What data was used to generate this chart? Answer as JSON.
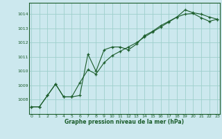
{
  "xlabel": "Graphe pression niveau de la mer (hPa)",
  "background_color": "#cce8ee",
  "grid_color": "#9ecfcc",
  "line_color": "#1a5c2a",
  "text_color": "#1a5c2a",
  "series1_x": [
    0,
    1,
    2,
    3,
    4,
    5,
    6,
    7,
    8,
    9,
    10,
    11,
    12,
    13,
    14,
    15,
    16,
    17,
    18,
    19,
    20,
    21,
    22,
    23
  ],
  "series1_y": [
    1007.5,
    1007.5,
    1008.3,
    1009.1,
    1008.2,
    1008.2,
    1008.3,
    1011.2,
    1010.0,
    1011.5,
    1011.7,
    1011.7,
    1011.5,
    1011.9,
    1012.5,
    1012.8,
    1013.2,
    1013.5,
    1013.8,
    1014.3,
    1014.1,
    1014.0,
    1013.8,
    1013.65
  ],
  "series2_x": [
    0,
    1,
    2,
    3,
    4,
    5,
    6,
    7,
    8,
    9,
    10,
    11,
    12,
    13,
    14,
    15,
    16,
    17,
    18,
    19,
    20,
    21,
    22,
    23
  ],
  "series2_y": [
    1007.5,
    1007.5,
    1008.3,
    1009.1,
    1008.2,
    1008.2,
    1009.2,
    1010.1,
    1009.8,
    1010.6,
    1011.1,
    1011.4,
    1011.7,
    1012.0,
    1012.4,
    1012.75,
    1013.1,
    1013.45,
    1013.8,
    1014.0,
    1014.05,
    1013.75,
    1013.5,
    1013.65
  ],
  "ylim": [
    1007.0,
    1014.8
  ],
  "xlim": [
    -0.3,
    23.3
  ],
  "yticks": [
    1008,
    1009,
    1010,
    1011,
    1012,
    1013,
    1014
  ],
  "xticks": [
    0,
    1,
    2,
    3,
    4,
    5,
    6,
    7,
    8,
    9,
    10,
    11,
    12,
    13,
    14,
    15,
    16,
    17,
    18,
    19,
    20,
    21,
    22,
    23
  ]
}
